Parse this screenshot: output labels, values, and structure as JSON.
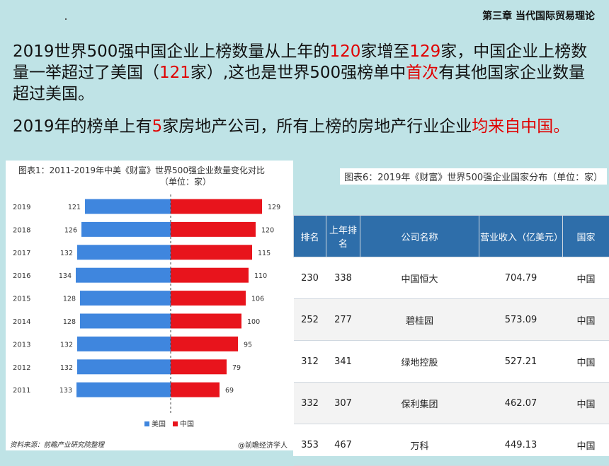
{
  "header": {
    "chapter": "第三章  当代国际贸易理论"
  },
  "paragraphs": {
    "p1": [
      {
        "text": "2019世界500强中国企业上榜数量从上年的",
        "red": false
      },
      {
        "text": "120",
        "red": true
      },
      {
        "text": "家增至",
        "red": false
      },
      {
        "text": "129",
        "red": true
      },
      {
        "text": "家，中国企业上榜数量一举超过了美国（",
        "red": false
      },
      {
        "text": "121",
        "red": true
      },
      {
        "text": "家）,这也是世界500强榜单中",
        "red": false
      },
      {
        "text": "首次",
        "red": true
      },
      {
        "text": "有其他国家企业数量超过美国。",
        "red": false
      }
    ],
    "p2": [
      {
        "text": "2019年的榜单上有",
        "red": false
      },
      {
        "text": "5",
        "red": true
      },
      {
        "text": "家房地产公司，所有上榜的房地产行业企业",
        "red": false
      },
      {
        "text": "均来自中国。",
        "red": true
      }
    ]
  },
  "chart_data": {
    "type": "bar",
    "orientation": "horizontal-diverging",
    "title": "图表1：2011-2019年中美《财富》世界500强企业数量变化对比",
    "subtitle": "（单位：家）",
    "categories": [
      "2019",
      "2018",
      "2017",
      "2016",
      "2015",
      "2014",
      "2013",
      "2012",
      "2011"
    ],
    "series": [
      {
        "name": "美国",
        "color": "#3f86de",
        "values": [
          121,
          126,
          132,
          134,
          128,
          128,
          132,
          132,
          133
        ]
      },
      {
        "name": "中国",
        "color": "#e8141c",
        "values": [
          129,
          120,
          115,
          110,
          106,
          100,
          95,
          79,
          69
        ]
      }
    ],
    "legend_position": "bottom-left",
    "source": "资料来源：前瞻产业研究院整理",
    "credit": "@前瞻经济学人"
  },
  "table": {
    "caption": "图表6：2019年《财富》世界500强企业国家分布（单位：家）",
    "headers": [
      "排名",
      "上年排名",
      "公司名称",
      "营业收入（亿美元）",
      "国家"
    ],
    "rows": [
      [
        "230",
        "338",
        "中国恒大",
        "704.79",
        "中国"
      ],
      [
        "252",
        "277",
        "碧桂园",
        "573.09",
        "中国"
      ],
      [
        "312",
        "341",
        "绿地控股",
        "527.21",
        "中国"
      ],
      [
        "332",
        "307",
        "保利集团",
        "462.07",
        "中国"
      ],
      [
        "353",
        "467",
        "万科",
        "449.13",
        "中国"
      ]
    ]
  }
}
